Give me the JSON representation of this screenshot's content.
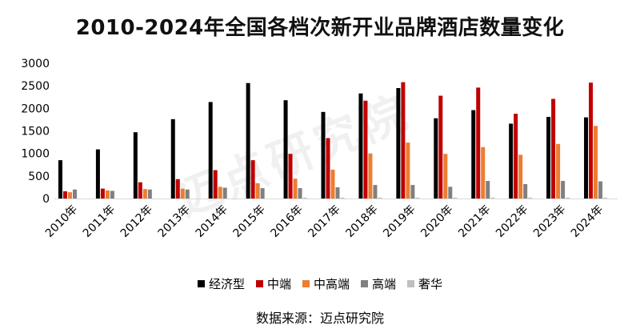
{
  "chart_data": {
    "type": "bar",
    "title": "2010-2024年全国各档次新开业品牌酒店数量变化",
    "categories": [
      "2010年",
      "2011年",
      "2012年",
      "2013年",
      "2014年",
      "2015年",
      "2016年",
      "2017年",
      "2018年",
      "2019年",
      "2020年",
      "2021年",
      "2022年",
      "2023年",
      "2024年"
    ],
    "ylim": [
      0,
      3000
    ],
    "yticks": [
      0,
      500,
      1000,
      1500,
      2000,
      2500,
      3000
    ],
    "grid": false,
    "legend_position": "bottom",
    "series": [
      {
        "name": "经济型",
        "color": "#000000",
        "values": [
          850,
          1090,
          1470,
          1760,
          2140,
          2560,
          2180,
          1920,
          2330,
          2450,
          1780,
          1960,
          1660,
          1810,
          1800
        ]
      },
      {
        "name": "中端",
        "color": "#c00000",
        "values": [
          160,
          220,
          360,
          430,
          630,
          850,
          990,
          1340,
          2170,
          2580,
          2280,
          2460,
          1880,
          2210,
          2570
        ]
      },
      {
        "name": "中高端",
        "color": "#ed7d31",
        "values": [
          140,
          180,
          210,
          220,
          260,
          340,
          440,
          640,
          1000,
          1240,
          990,
          1140,
          970,
          1210,
          1610
        ]
      },
      {
        "name": "高端",
        "color": "#808080",
        "values": [
          200,
          170,
          200,
          200,
          240,
          230,
          230,
          250,
          300,
          300,
          260,
          390,
          320,
          390,
          380
        ]
      },
      {
        "name": "奢华",
        "color": "#bfbfbf",
        "values": [
          0,
          0,
          0,
          0,
          0,
          0,
          20,
          20,
          20,
          20,
          20,
          20,
          20,
          20,
          20
        ]
      }
    ]
  },
  "watermark_text": "迈点研究院",
  "source": "数据来源：迈点研究院"
}
